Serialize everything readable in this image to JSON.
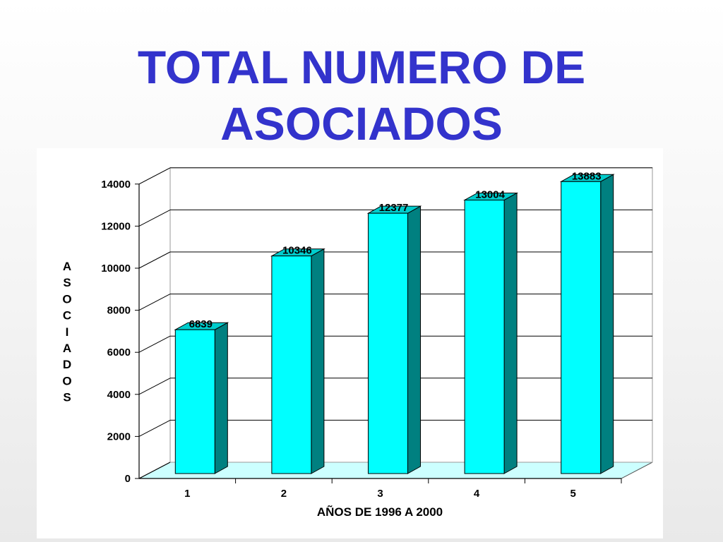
{
  "title_lines": [
    "TOTAL NUMERO DE",
    "ASOCIADOS"
  ],
  "chart_data": {
    "type": "bar",
    "style": "3d-column",
    "categories": [
      "1",
      "2",
      "3",
      "4",
      "5"
    ],
    "values": [
      6839,
      10346,
      12377,
      13004,
      13883
    ],
    "data_labels": [
      "6839",
      "10346",
      "12377",
      "13004",
      "13883"
    ],
    "xlabel": "AÑOS DE 1996 A 2000",
    "ylabel": "ASOCIADOS",
    "ylim": [
      0,
      14000
    ],
    "yticks": [
      "0",
      "2000",
      "4000",
      "6000",
      "8000",
      "10000",
      "12000",
      "14000"
    ],
    "grid": true,
    "legend": false,
    "colors": {
      "bar_front": "#00ffff",
      "bar_side": "#008080",
      "bar_top": "#00cccc",
      "floor": "#ccffff",
      "title": "#3333cc"
    }
  }
}
